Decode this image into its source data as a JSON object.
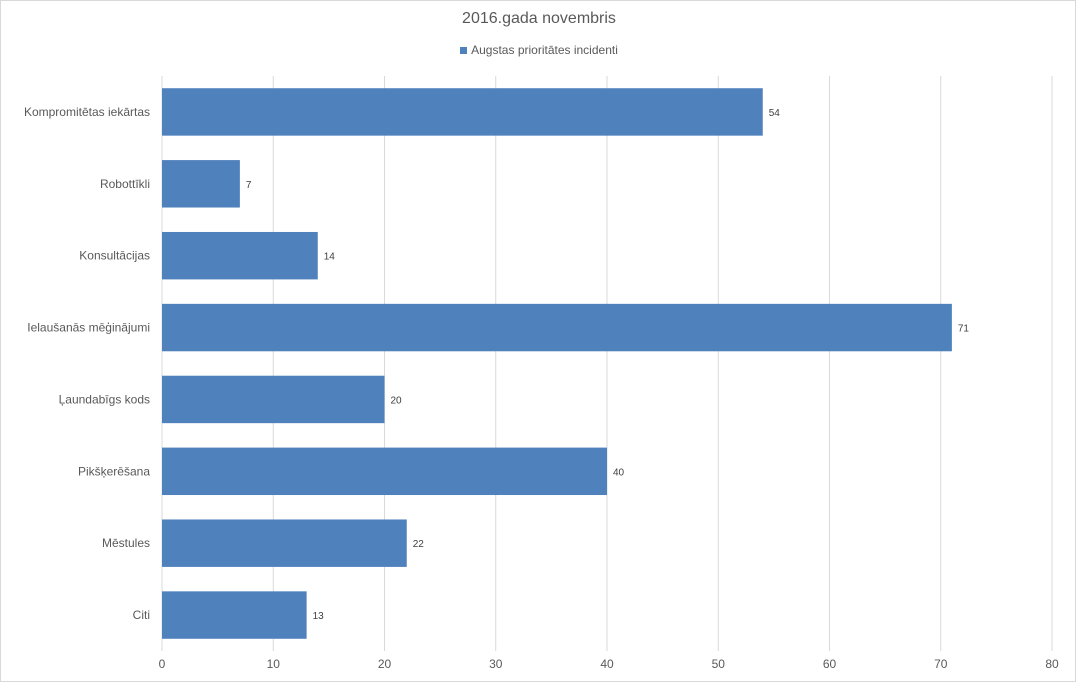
{
  "chart_data": {
    "type": "bar",
    "orientation": "horizontal",
    "title": "2016.gada novembris",
    "categories": [
      "Kompromitētas iekārtas",
      "Robottīkli",
      "Konsultācijas",
      "Ielaušanās mēģinājumi",
      "Ļaundabīgs kods",
      "Pikšķerēšana",
      "Mēstules",
      "Citi"
    ],
    "series": [
      {
        "name": "Augstas prioritātes incidenti",
        "values": [
          54,
          7,
          14,
          71,
          20,
          40,
          22,
          13
        ],
        "color": "#4f81bd"
      }
    ],
    "xlim": [
      0,
      80
    ],
    "xticks": [
      "0",
      "10",
      "20",
      "30",
      "40",
      "50",
      "60",
      "70",
      "80"
    ],
    "grid": true,
    "legend_position": "top",
    "data_labels": true
  }
}
